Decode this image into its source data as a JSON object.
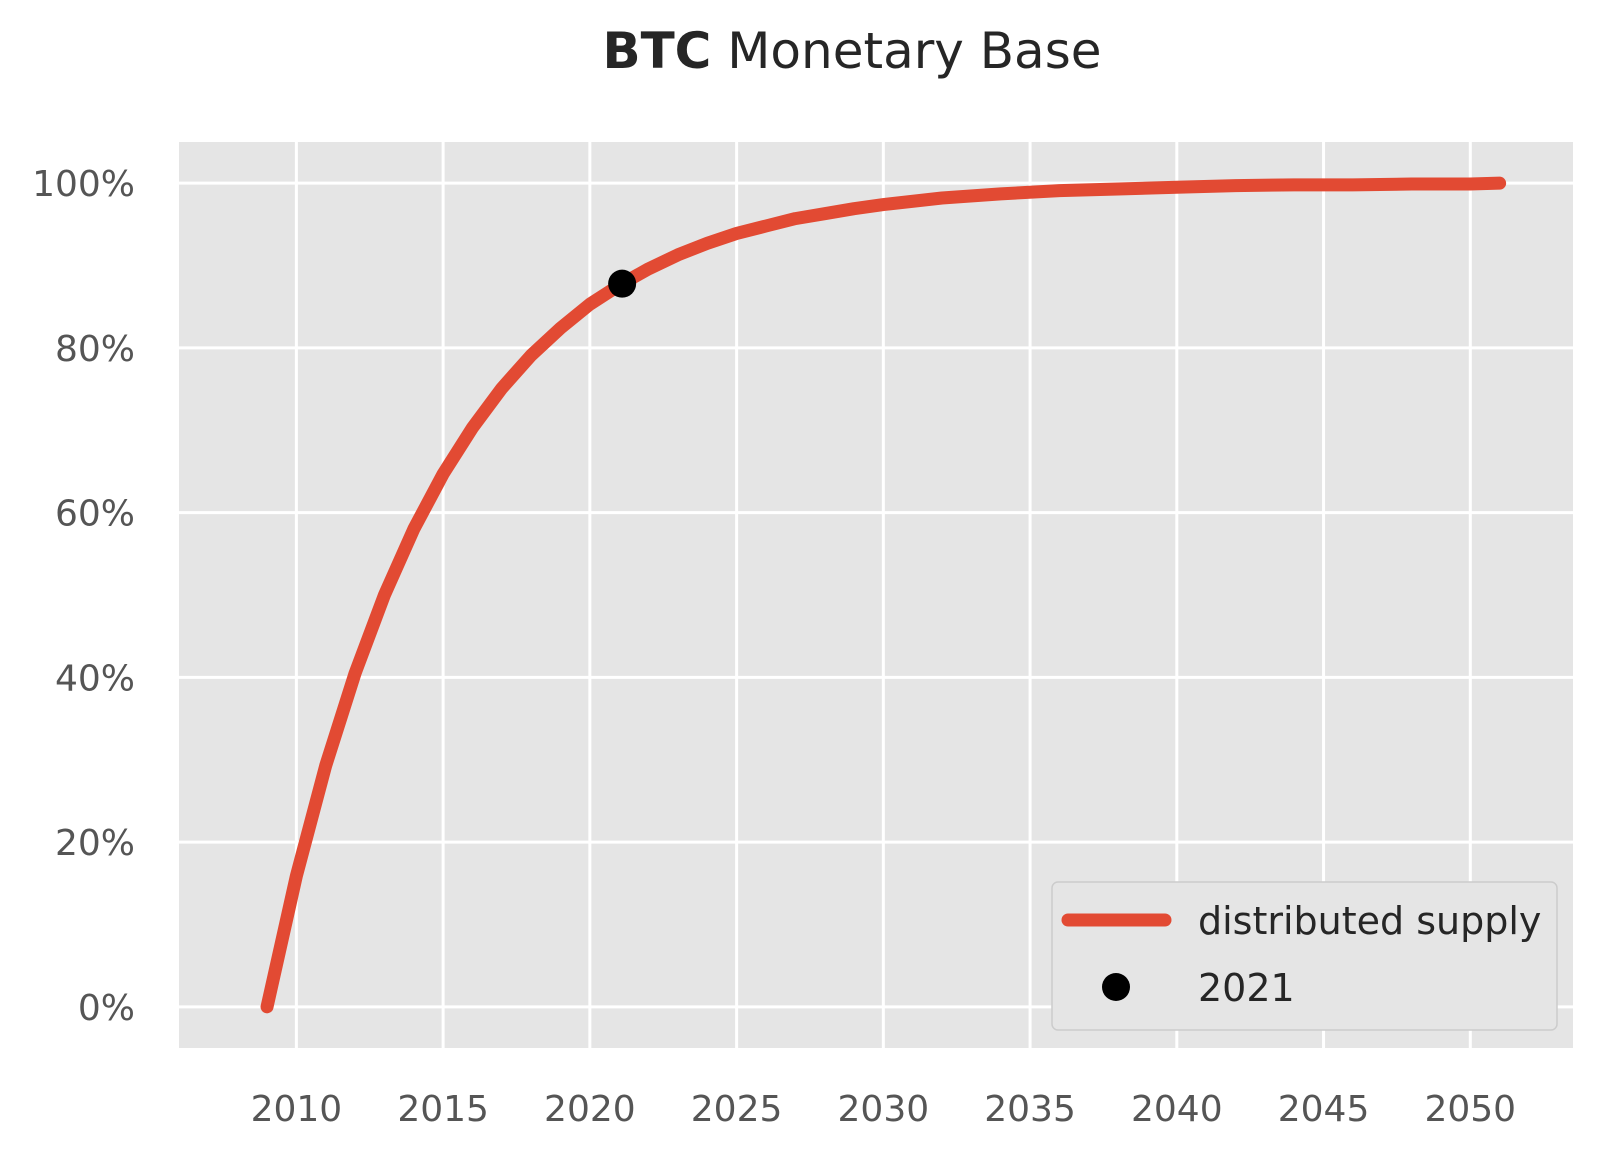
{
  "chart_data": {
    "type": "line",
    "title_bold": "BTC",
    "title_rest": " Monetary Base",
    "xlabel": "",
    "ylabel": "",
    "xlim": [
      2006,
      2053.5
    ],
    "ylim": [
      -5,
      105
    ],
    "x_ticks": [
      2010,
      2015,
      2020,
      2025,
      2030,
      2035,
      2040,
      2045,
      2050
    ],
    "x_tick_labels": [
      "2010",
      "2015",
      "2020",
      "2025",
      "2030",
      "2035",
      "2040",
      "2045",
      "2050"
    ],
    "y_ticks": [
      0,
      20,
      40,
      60,
      80,
      100
    ],
    "y_tick_labels": [
      "0%",
      "20%",
      "40%",
      "60%",
      "80%",
      "100%"
    ],
    "grid": true,
    "legend_position": "bottom-right",
    "colors": {
      "background": "#e5e5e5",
      "grid": "#ffffff",
      "line": "#e24a33",
      "marker": "#000000"
    },
    "series": [
      {
        "name": "distributed supply",
        "kind": "line",
        "x": [
          2009,
          2010,
          2011,
          2012,
          2013,
          2014,
          2015,
          2016,
          2017,
          2018,
          2019,
          2020,
          2021,
          2022,
          2023,
          2024,
          2025,
          2026,
          2027,
          2028,
          2029,
          2030,
          2032,
          2034,
          2036,
          2038,
          2040,
          2042,
          2044,
          2046,
          2048,
          2050,
          2051
        ],
        "y": [
          0,
          15.9,
          29.3,
          40.5,
          50.0,
          58.0,
          64.7,
          70.3,
          75.1,
          79.1,
          82.4,
          85.3,
          87.6,
          89.6,
          91.3,
          92.7,
          93.9,
          94.8,
          95.7,
          96.3,
          96.9,
          97.4,
          98.2,
          98.7,
          99.1,
          99.3,
          99.5,
          99.7,
          99.8,
          99.8,
          99.9,
          99.9,
          100.0
        ]
      },
      {
        "name": "2021",
        "kind": "point",
        "x": [
          2021.1
        ],
        "y": [
          87.8
        ]
      }
    ]
  }
}
